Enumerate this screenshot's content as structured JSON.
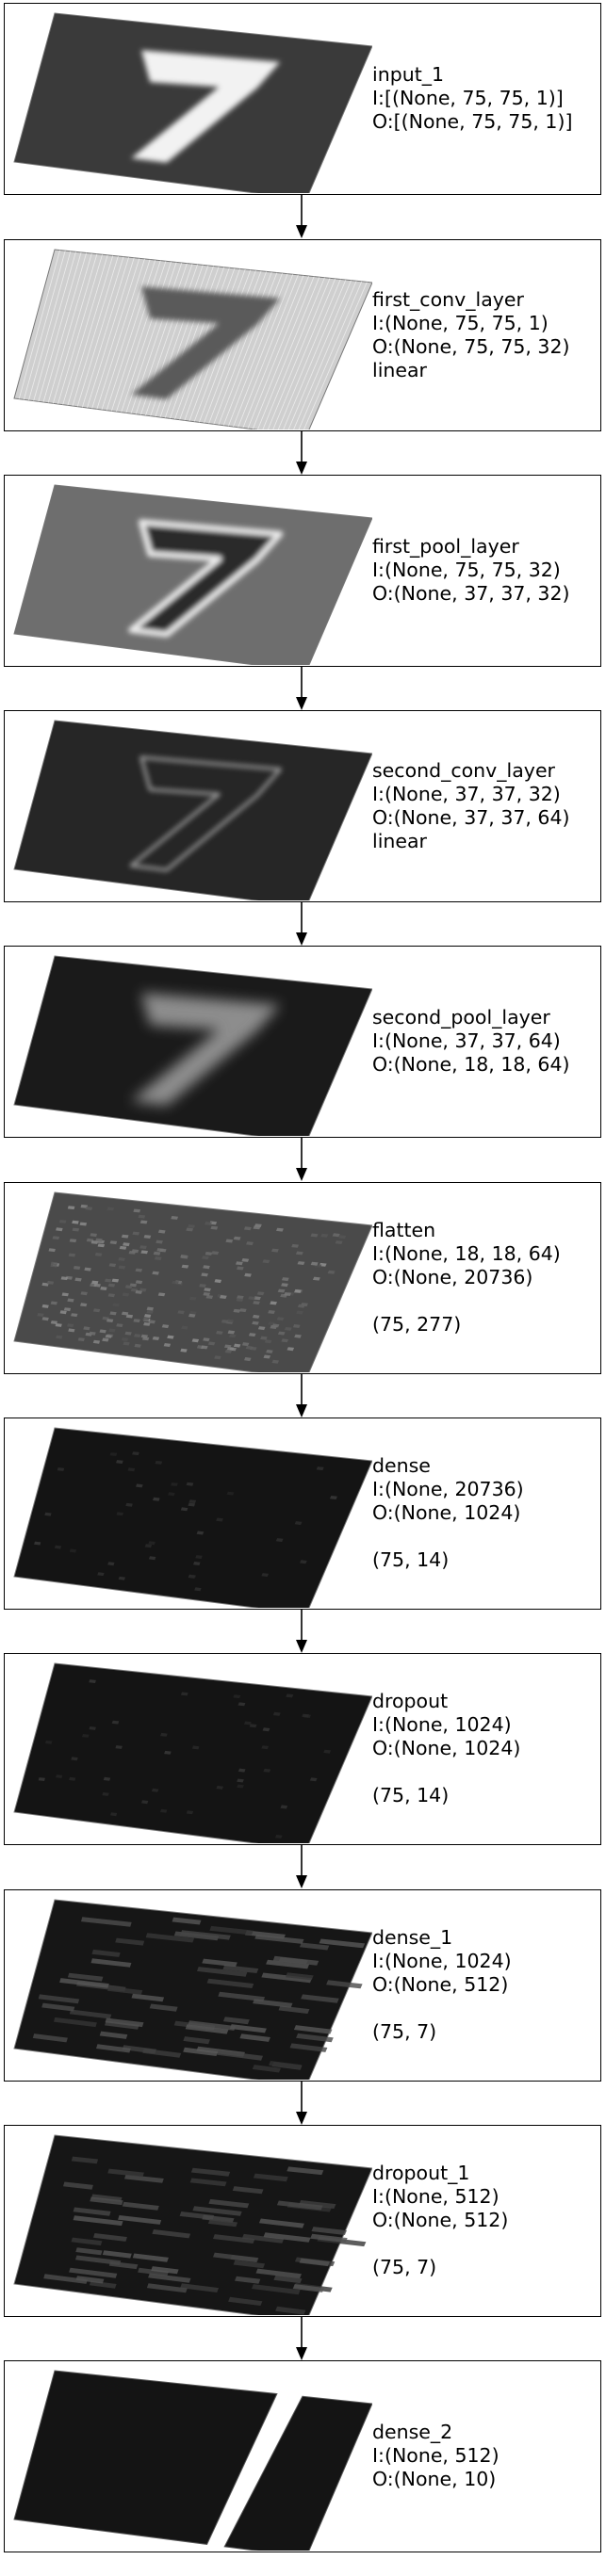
{
  "layers": [
    {
      "name": "input_1",
      "lines": [
        "input_1",
        "I:[(None, 75, 75, 1)]",
        "O:[(None, 75, 75, 1)]"
      ],
      "pattern": "digit_bright"
    },
    {
      "name": "first_conv_layer",
      "lines": [
        "first_conv_layer",
        "I:(None, 75, 75, 1)",
        "O:(None, 75, 75, 32)",
        "linear"
      ],
      "pattern": "digit_dark_on_light"
    },
    {
      "name": "first_pool_layer",
      "lines": [
        "first_pool_layer",
        "I:(None, 75, 75, 32)",
        "O:(None, 37, 37, 32)"
      ],
      "pattern": "digit_outline"
    },
    {
      "name": "second_conv_layer",
      "lines": [
        "second_conv_layer",
        "I:(None, 37, 37, 32)",
        "O:(None, 37, 37, 64)",
        "linear"
      ],
      "pattern": "digit_sparse"
    },
    {
      "name": "second_pool_layer",
      "lines": [
        "second_pool_layer",
        "I:(None, 37, 37, 64)",
        "O:(None, 18, 18, 64)"
      ],
      "pattern": "digit_blur"
    },
    {
      "name": "flatten",
      "lines": [
        "flatten",
        "I:(None, 18, 18, 64)",
        "O:(None, 20736)",
        "",
        "(75, 277)"
      ],
      "pattern": "noise"
    },
    {
      "name": "dense",
      "lines": [
        "dense",
        "I:(None, 20736)",
        "O:(None, 1024)",
        "",
        "(75, 14)"
      ],
      "pattern": "dark"
    },
    {
      "name": "dropout",
      "lines": [
        "dropout",
        "I:(None, 1024)",
        "O:(None, 1024)",
        "",
        "(75, 14)"
      ],
      "pattern": "dark"
    },
    {
      "name": "dense_1",
      "lines": [
        "dense_1",
        "I:(None, 1024)",
        "O:(None, 512)",
        "",
        "(75, 7)"
      ],
      "pattern": "stripes"
    },
    {
      "name": "dropout_1",
      "lines": [
        "dropout_1",
        "I:(None, 512)",
        "O:(None, 512)",
        "",
        "(75, 7)"
      ],
      "pattern": "stripes"
    },
    {
      "name": "dense_2",
      "lines": [
        "dense_2",
        "I:(None, 512)",
        "O:(None, 10)"
      ],
      "pattern": "split"
    }
  ]
}
